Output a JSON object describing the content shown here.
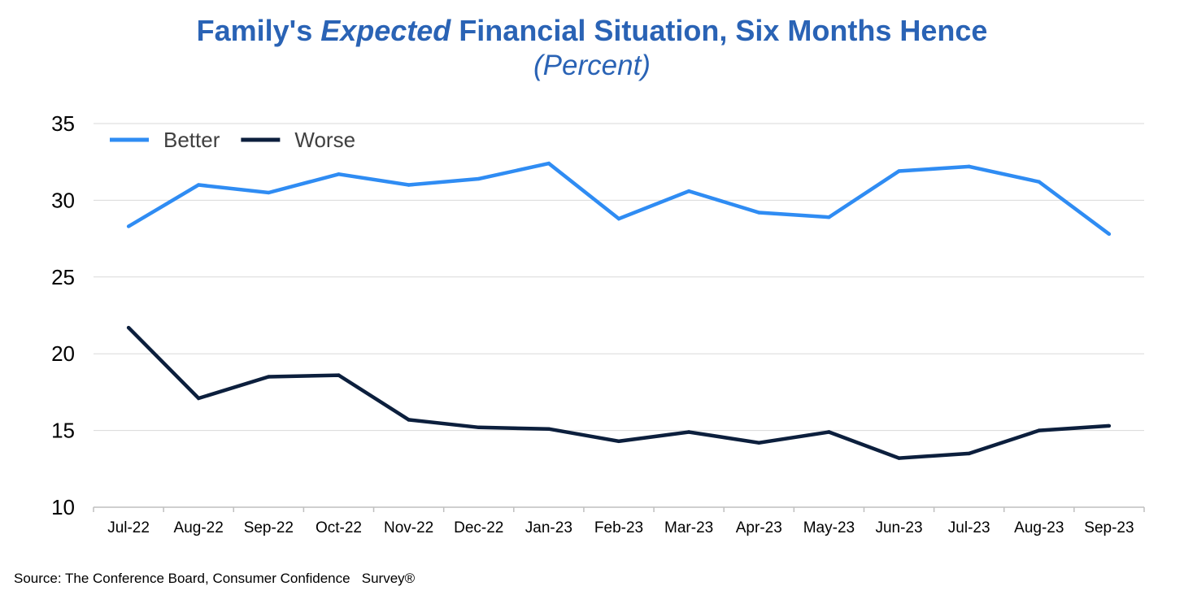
{
  "title": {
    "prefix": "Family's ",
    "emphasis": "Expected",
    "suffix": " Financial Situation, Six Months Hence",
    "subtitle": "(Percent)"
  },
  "source": "Source: The Conference Board, Consumer Confidence   Survey®",
  "chart_data": {
    "type": "line",
    "categories": [
      "Jul-22",
      "Aug-22",
      "Sep-22",
      "Oct-22",
      "Nov-22",
      "Dec-22",
      "Jan-23",
      "Feb-23",
      "Mar-23",
      "Apr-23",
      "May-23",
      "Jun-23",
      "Jul-23",
      "Aug-23",
      "Sep-23"
    ],
    "series": [
      {
        "name": "Better",
        "color": "#2f8cf3",
        "values": [
          28.3,
          31.0,
          30.5,
          31.7,
          31.0,
          31.4,
          32.4,
          28.8,
          30.6,
          29.2,
          28.9,
          31.9,
          32.2,
          31.2,
          27.8
        ]
      },
      {
        "name": "Worse",
        "color": "#0c1f3d",
        "values": [
          21.7,
          17.1,
          18.5,
          18.6,
          15.7,
          15.2,
          15.1,
          14.3,
          14.9,
          14.2,
          14.9,
          13.2,
          13.5,
          15.0,
          15.3
        ]
      }
    ],
    "ylim": [
      10,
      35
    ],
    "yticks": [
      10,
      15,
      20,
      25,
      30,
      35
    ],
    "grid": true,
    "legend": "top-left"
  }
}
